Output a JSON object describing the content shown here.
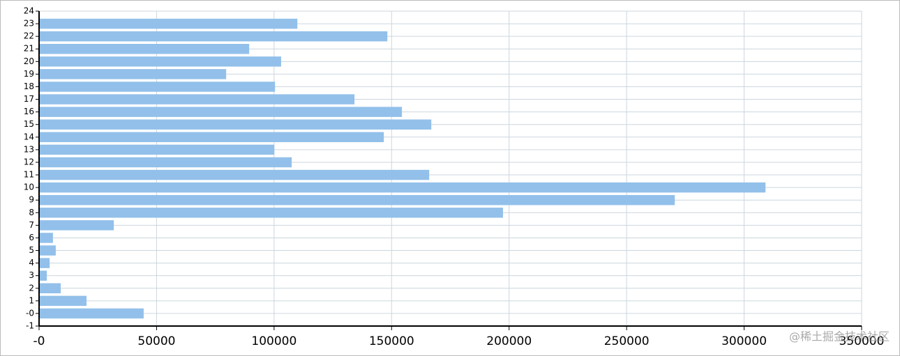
{
  "chart_data": {
    "type": "hbar",
    "y": [
      0,
      1,
      2,
      3,
      4,
      5,
      6,
      7,
      8,
      9,
      10,
      11,
      12,
      13,
      14,
      15,
      16,
      17,
      18,
      19,
      20,
      21,
      22,
      23
    ],
    "values": [
      44500,
      20200,
      9200,
      3300,
      4500,
      7100,
      5900,
      31800,
      197400,
      270500,
      309100,
      166000,
      107500,
      100100,
      146700,
      166900,
      154400,
      134200,
      100400,
      79600,
      103000,
      89400,
      148200,
      109900
    ],
    "color": "#92c0ea",
    "xlim": [
      0,
      350000
    ],
    "xticks": [
      {
        "value": 0,
        "label": "-0"
      },
      50000,
      100000,
      150000,
      200000,
      250000,
      300000,
      350000
    ],
    "ylim": [
      -1,
      24
    ],
    "yticks": [
      -1,
      {
        "value": 0,
        "label": "-0"
      },
      1,
      2,
      3,
      4,
      5,
      6,
      7,
      8,
      9,
      10,
      11,
      12,
      13,
      14,
      15,
      16,
      17,
      18,
      19,
      20,
      21,
      22,
      23,
      24
    ],
    "grid": true,
    "watermark": "@稀土掘金技术社区"
  }
}
